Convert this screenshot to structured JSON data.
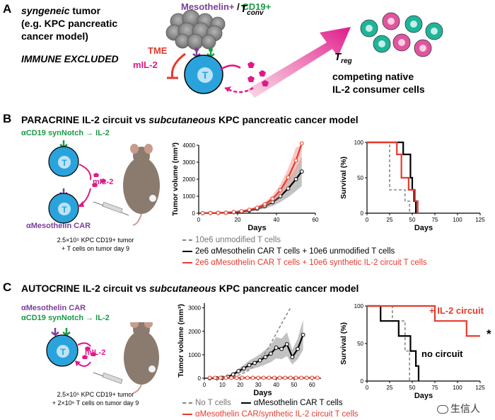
{
  "panelA": {
    "letter": "A",
    "line1_italic": "syngeneic",
    "line1_rest": " tumor",
    "line2": "(e.g. KPC pancreatic",
    "line3": "cancer model)",
    "immune": "IMMUNE EXCLUDED",
    "tme": "TME",
    "antigen1": "Mesothelin+",
    "antigen_sep": " / ",
    "antigen2": "CD19+",
    "cell_label": "T",
    "mil2": "mIL-2",
    "tconv_main": "T",
    "tconv_sub": "conv",
    "treg_main": "T",
    "treg_sub": "reg",
    "competing1": "competing native",
    "competing2": "IL-2 consumer cells"
  },
  "panelB": {
    "letter": "B",
    "title_pre": "PARACRINE IL-2 circuit vs ",
    "title_it": "subcutaneous",
    "title_post": " KPC pancreatic cancer model",
    "synnotch": "αCD19 synNotch → IL-2",
    "car": "αMesothelin CAR",
    "mil2": "mIL-2",
    "cell_label": "T",
    "dose1": "2.5×10⁵ KPC CD19+ tumor",
    "dose2": "+ T cells on tumor day 9",
    "legend": [
      "10e6 unmodified T cells",
      "2e6 αMesothelin CAR T cells + 10e6 unmodified T cells",
      "2e6 αMesothelin CAR T cells + 10e6 synthetic IL-2 circuit T cells"
    ]
  },
  "panelC": {
    "letter": "C",
    "title_pre": "AUTOCRINE IL-2 circuit vs ",
    "title_it": "subcutaneous",
    "title_post": " KPC pancreatic cancer model",
    "car": "αMesothelin CAR",
    "synnotch": "αCD19 synNotch → IL-2",
    "mil2": "mIL-2",
    "cell_label": "T",
    "dose1": "2.5×10⁵ KPC CD19+ tumor",
    "dose2": "+ 2×10⁶ T cells on tumor day 9",
    "legend_row1_a": "No T cells",
    "legend_row1_b": "αMesothelin CAR T cells",
    "legend_row2": "αMesothelin CAR/synthetic IL-2 circuit T cells",
    "il2_label": "+ IL-2 circuit",
    "nocircuit_label": "no circuit",
    "star": "*"
  },
  "colors": {
    "red": "#e63a2e",
    "purple": "#7b3f98",
    "green": "#1a9a47",
    "magenta": "#e0198a",
    "blue": "#2aa3dc",
    "teal": "#1fb59a",
    "pink": "#e0559f"
  },
  "watermark": "生信人",
  "chart_data": [
    {
      "type": "line",
      "id": "B-tumor",
      "ylabel": "Tumor volume (mm³)",
      "xlabel": "Days",
      "xlim": [
        0,
        60
      ],
      "ylim": [
        0,
        4000
      ],
      "xticks": [
        0,
        20,
        40,
        60
      ],
      "yticks": [
        0,
        1000,
        2000,
        3000,
        4000
      ],
      "series": [
        {
          "name": "2e6 αMesothelin CAR T cells + 10e6 unmodified T cells",
          "color": "#000000",
          "x": [
            2,
            6,
            10,
            14,
            18,
            22,
            26,
            30,
            34,
            38,
            42,
            46,
            50,
            53
          ],
          "y": [
            0,
            10,
            20,
            30,
            60,
            100,
            160,
            260,
            420,
            650,
            1000,
            1450,
            2000,
            2450
          ]
        },
        {
          "name": "2e6 αMesothelin CAR T cells + 10e6 synthetic IL-2 circuit T cells",
          "color": "#e63a2e",
          "x": [
            2,
            6,
            10,
            14,
            18,
            22,
            26,
            30,
            34,
            38,
            42,
            46,
            50,
            53
          ],
          "y": [
            0,
            10,
            20,
            30,
            70,
            120,
            200,
            320,
            520,
            850,
            1350,
            2100,
            3100,
            4100
          ]
        }
      ]
    },
    {
      "type": "line",
      "id": "B-survival",
      "ylabel": "Survival (%)",
      "xlabel": "Days",
      "xlim": [
        0,
        125
      ],
      "ylim": [
        0,
        100
      ],
      "xticks": [
        0,
        25,
        50,
        75,
        100,
        125
      ],
      "yticks": [
        0,
        50,
        100
      ],
      "series": [
        {
          "name": "10e6 unmodified T cells",
          "color": "#888888",
          "dashed": true,
          "x": [
            0,
            25,
            25,
            42,
            42,
            47,
            47
          ],
          "y": [
            100,
            100,
            33,
            33,
            17,
            17,
            0
          ]
        },
        {
          "name": "2e6 αMesothelin CAR T cells + 10e6 unmodified T cells",
          "color": "#000000",
          "x": [
            0,
            40,
            40,
            48,
            48,
            50,
            50,
            52,
            52,
            54,
            54
          ],
          "y": [
            100,
            100,
            83,
            83,
            50,
            50,
            33,
            33,
            17,
            17,
            0
          ]
        },
        {
          "name": "2e6 αMesothelin CAR T cells + 10e6 synthetic IL-2 circuit T cells",
          "color": "#e63a2e",
          "x": [
            0,
            33,
            33,
            38,
            38,
            46,
            46,
            53,
            53,
            56,
            56
          ],
          "y": [
            100,
            100,
            83,
            83,
            50,
            50,
            33,
            33,
            17,
            17,
            0
          ]
        }
      ]
    },
    {
      "type": "line",
      "id": "C-tumor",
      "ylabel": "Tumor volume (mm³)",
      "xlabel": "Days",
      "xlim": [
        0,
        65
      ],
      "ylim": [
        0,
        3200
      ],
      "xticks": [
        0,
        10,
        20,
        30,
        40,
        50,
        60
      ],
      "yticks": [
        0,
        1000,
        2000,
        3000
      ],
      "series": [
        {
          "name": "No T cells",
          "color": "#888888",
          "dashed": true,
          "x": [
            5,
            10,
            15,
            20,
            25,
            30,
            35,
            40,
            45,
            48
          ],
          "y": [
            0,
            20,
            60,
            150,
            350,
            700,
            1200,
            1900,
            2600,
            3000
          ]
        },
        {
          "name": "αMesothelin CAR T cells",
          "color": "#000000",
          "x": [
            3,
            7,
            10,
            13,
            16,
            19,
            22,
            25,
            28,
            31,
            34,
            37,
            40,
            43,
            46,
            49,
            52,
            55
          ],
          "y": [
            0,
            0,
            20,
            60,
            160,
            300,
            420,
            560,
            650,
            760,
            900,
            1050,
            1300,
            1250,
            1450,
            900,
            1250,
            1850
          ]
        },
        {
          "name": "αMesothelin CAR/synthetic IL-2 circuit T cells",
          "color": "#e63a2e",
          "x": [
            3,
            6,
            9,
            12,
            15,
            18,
            21,
            24,
            27,
            30,
            33,
            36,
            39,
            42,
            45,
            48,
            51,
            54,
            57,
            60,
            63
          ],
          "y": [
            20,
            20,
            20,
            20,
            20,
            20,
            20,
            20,
            20,
            20,
            20,
            20,
            20,
            20,
            20,
            20,
            20,
            20,
            20,
            20,
            20
          ]
        }
      ]
    },
    {
      "type": "line",
      "id": "C-survival",
      "ylabel": "Survival (%)",
      "xlabel": "Days",
      "xlim": [
        0,
        125
      ],
      "ylim": [
        0,
        100
      ],
      "xticks": [
        0,
        25,
        50,
        75,
        100,
        125
      ],
      "yticks": [
        0,
        50,
        100
      ],
      "series": [
        {
          "name": "No T cells",
          "color": "#888888",
          "dashed": true,
          "x": [
            0,
            28,
            28,
            42,
            42,
            47,
            47
          ],
          "y": [
            100,
            100,
            80,
            80,
            40,
            40,
            0
          ]
        },
        {
          "name": "αMesothelin CAR T cells",
          "color": "#000000",
          "x": [
            0,
            15,
            15,
            35,
            35,
            48,
            48,
            54,
            54,
            57,
            57
          ],
          "y": [
            100,
            100,
            80,
            80,
            60,
            60,
            40,
            40,
            20,
            20,
            0
          ]
        },
        {
          "name": "αMesothelin CAR/synthetic IL-2 circuit T cells",
          "color": "#e63a2e",
          "x": [
            0,
            75,
            75,
            110,
            110,
            125
          ],
          "y": [
            100,
            100,
            80,
            80,
            60,
            60
          ]
        }
      ]
    }
  ]
}
